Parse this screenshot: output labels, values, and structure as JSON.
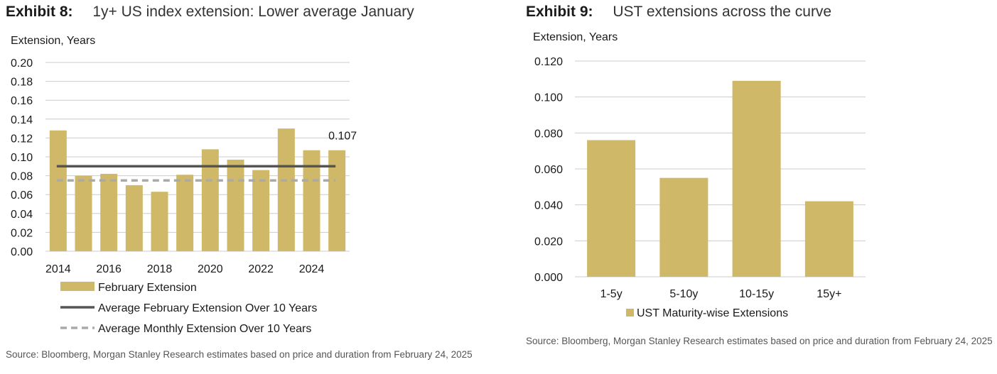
{
  "exhibit8": {
    "label": "Exhibit 8:",
    "title": "1y+ US index extension: Lower average January",
    "source": "Source: Bloomberg, Morgan Stanley Research estimates based on price and duration from February 24, 2025"
  },
  "exhibit9": {
    "label": "Exhibit 9:",
    "title": "UST extensions across the curve",
    "source": "Source: Bloomberg, Morgan Stanley Research estimates based on price and duration from February 24, 2025"
  },
  "colors": {
    "bar": "#cfb868",
    "avg_feb": "#555555",
    "avg_month": "#aaaaaa",
    "grid": "#cccccc"
  },
  "chart_data": [
    {
      "type": "bar",
      "ylabel": "Extension, Years",
      "ylim": [
        0,
        0.2
      ],
      "yticks": [
        "0.00",
        "0.02",
        "0.04",
        "0.06",
        "0.08",
        "0.10",
        "0.12",
        "0.14",
        "0.16",
        "0.18",
        "0.20"
      ],
      "categories": [
        "2014",
        "2015",
        "2016",
        "2017",
        "2018",
        "2019",
        "2020",
        "2021",
        "2022",
        "2023",
        "2024",
        "2025"
      ],
      "xtick_labels": [
        "2014",
        "2016",
        "2018",
        "2020",
        "2022",
        "2024"
      ],
      "series": [
        {
          "name": "February Extension",
          "values": [
            0.128,
            0.08,
            0.082,
            0.07,
            0.063,
            0.081,
            0.108,
            0.097,
            0.086,
            0.13,
            0.107,
            0.107
          ]
        }
      ],
      "lines": [
        {
          "name": "Average February Extension Over 10 Years",
          "value": 0.09,
          "style": "solid"
        },
        {
          "name": "Average Monthly Extension Over 10 Years",
          "value": 0.075,
          "style": "dashed"
        }
      ],
      "annotation": "0.107",
      "legend": "bottom"
    },
    {
      "type": "bar",
      "ylabel": "Extension, Years",
      "ylim": [
        0,
        0.12
      ],
      "yticks": [
        "0.000",
        "0.020",
        "0.040",
        "0.060",
        "0.080",
        "0.100",
        "0.120"
      ],
      "categories": [
        "1-5y",
        "5-10y",
        "10-15y",
        "15y+"
      ],
      "series": [
        {
          "name": "UST Maturity-wise Extensions",
          "values": [
            0.076,
            0.055,
            0.109,
            0.042
          ]
        }
      ],
      "legend": "bottom"
    }
  ]
}
